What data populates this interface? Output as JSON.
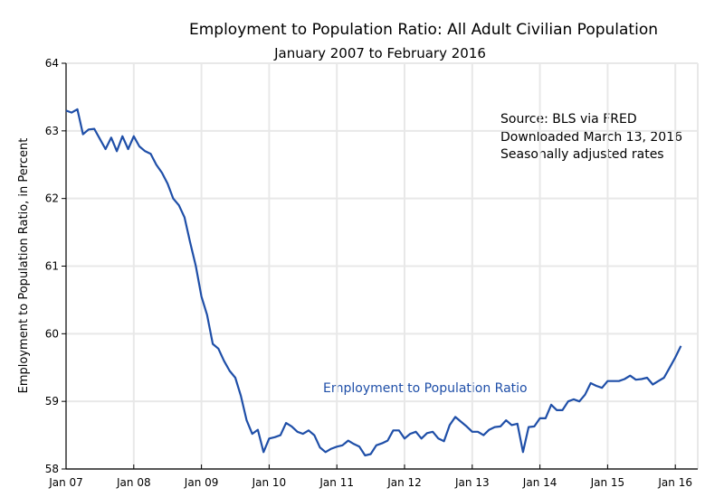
{
  "chart_data": {
    "type": "line",
    "title": "Employment to Population Ratio:  All Adult Civilian Population",
    "subtitle": "January 2007 to February 2016",
    "xlabel": "",
    "ylabel": "Employment to Population Ratio, in Percent",
    "ylim": [
      58,
      64
    ],
    "yticks": [
      "58",
      "59",
      "60",
      "61",
      "62",
      "63",
      "64"
    ],
    "xticks": [
      "Jan 07",
      "Jan 08",
      "Jan 09",
      "Jan 10",
      "Jan 11",
      "Jan 12",
      "Jan 13",
      "Jan 14",
      "Jan 15",
      "Jan 16"
    ],
    "x_start": "Jan 2007",
    "x_frequency": "monthly",
    "grid": true,
    "annotations": [
      "Source:  BLS via FRED",
      "Downloaded March 13, 2016",
      "Seasonally adjusted rates"
    ],
    "series": [
      {
        "name": "Employment to Population Ratio",
        "color": "#1f4fa8",
        "values": [
          63.3,
          63.27,
          63.32,
          62.95,
          63.02,
          63.03,
          62.88,
          62.73,
          62.9,
          62.7,
          62.92,
          62.73,
          62.92,
          62.77,
          62.7,
          62.66,
          62.5,
          62.38,
          62.22,
          62.0,
          61.9,
          61.72,
          61.35,
          61.0,
          60.55,
          60.28,
          59.85,
          59.78,
          59.6,
          59.45,
          59.35,
          59.08,
          58.72,
          58.52,
          58.58,
          58.25,
          58.45,
          58.47,
          58.5,
          58.68,
          58.63,
          58.55,
          58.52,
          58.57,
          58.5,
          58.32,
          58.25,
          58.3,
          58.33,
          58.35,
          58.42,
          58.37,
          58.33,
          58.2,
          58.22,
          58.35,
          58.38,
          58.42,
          58.57,
          58.57,
          58.45,
          58.52,
          58.55,
          58.45,
          58.53,
          58.55,
          58.45,
          58.41,
          58.65,
          58.77,
          58.7,
          58.63,
          58.55,
          58.55,
          58.5,
          58.58,
          58.62,
          58.63,
          58.72,
          58.65,
          58.67,
          58.25,
          58.62,
          58.63,
          58.75,
          58.75,
          58.95,
          58.87,
          58.87,
          59.0,
          59.03,
          59.0,
          59.1,
          59.27,
          59.23,
          59.2,
          59.3,
          59.3,
          59.3,
          59.33,
          59.38,
          59.32,
          59.33,
          59.35,
          59.25,
          59.3,
          59.35,
          59.5,
          59.65,
          59.82
        ]
      }
    ]
  }
}
